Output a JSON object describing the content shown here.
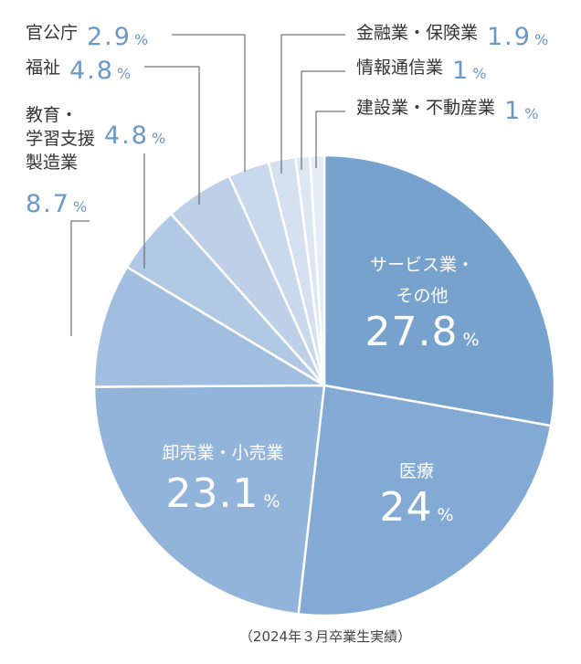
{
  "chart_data": {
    "type": "pie",
    "note": "（2024年３月卒業生実績）",
    "unit": "%",
    "colors": [
      "#76a2cd",
      "#83aad4",
      "#92b3da",
      "#a1bddf",
      "#b2c9e5",
      "#bdd0e8",
      "#c8d8ed",
      "#d5e1f1",
      "#dde7f4",
      "#e4ecf6"
    ],
    "slices": [
      {
        "label_lines": [
          "サービス業・",
          "その他"
        ],
        "value": 27.8,
        "display": "27.8"
      },
      {
        "label_lines": [
          "医療"
        ],
        "value": 24,
        "display": "24"
      },
      {
        "label_lines": [
          "卸売業・小売業"
        ],
        "value": 23.1,
        "display": "23.1"
      },
      {
        "label_lines": [
          "製造業"
        ],
        "value": 8.7,
        "display": "8.7"
      },
      {
        "label_lines": [
          "教育・",
          "学習支援"
        ],
        "value": 4.8,
        "display": "4.8"
      },
      {
        "label_lines": [
          "福祉"
        ],
        "value": 4.8,
        "display": "4.8"
      },
      {
        "label_lines": [
          "官公庁"
        ],
        "value": 2.9,
        "display": "2.9"
      },
      {
        "label_lines": [
          "金融業・保険業"
        ],
        "value": 1.9,
        "display": "1.9"
      },
      {
        "label_lines": [
          "情報通信業"
        ],
        "value": 1,
        "display": "1"
      },
      {
        "label_lines": [
          "建設業・不動産業"
        ],
        "value": 1,
        "display": "1"
      }
    ]
  }
}
